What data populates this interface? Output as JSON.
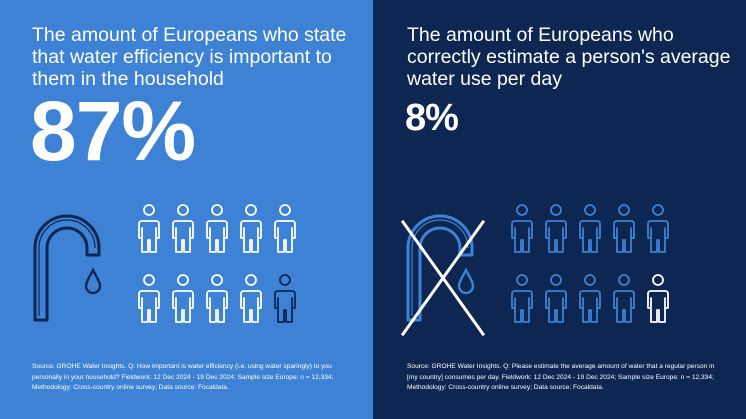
{
  "left": {
    "heading": "The amount of Europeans who state that water efficiency is important to them in the household",
    "stat": "87%",
    "source": "Source: GROHE Water Insights. Q: How important is water efficiency (i.e. using water sparingly) to you personally in your household? Fieldwork: 12 Dec 2024 - 19 Dec 2024; Sample size Europe: n = 12,334; Methodology: Cross-country online survey; Data source: Focaldata.",
    "icons": {
      "tap": "tap-icon",
      "drop": "water-drop-icon",
      "person": "person-icon"
    },
    "persons_highlighted": 9,
    "persons_total": 10
  },
  "right": {
    "heading": "The amount of Europeans who correctly estimate a person's average water use per day",
    "stat": "8%",
    "source": "Source: GROHE Water Insights. Q: Please estimate the average amount of water that a regular person in [my country] consumes per day. Fieldwork: 12 Dec 2024 - 19 Dec 2024; Sample size Europe: n = 12,334; Methodology: Cross-country online survey; Data source: Focaldata.",
    "icons": {
      "tap": "tap-icon",
      "drop": "water-drop-icon",
      "cross": "cross-out-icon",
      "person": "person-icon"
    },
    "persons_highlighted": 1,
    "persons_total": 10
  },
  "colors": {
    "left_bg": "#3d82d4",
    "right_bg": "#0d2752",
    "left_tap": "#0d2752",
    "right_tap": "#3d82d4",
    "text": "#ffffff"
  }
}
